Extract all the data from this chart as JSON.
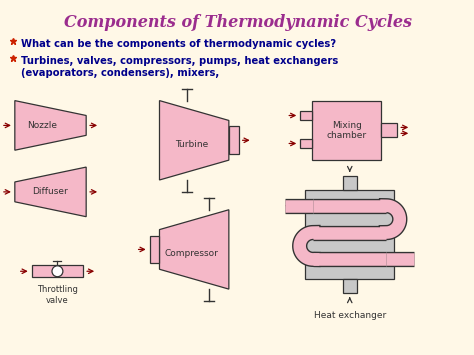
{
  "title": "Components of Thermodynamic Cycles",
  "title_color": "#9B2D8E",
  "bullet1": "What can be the components of thermodynamic cycles?",
  "bullet2": "Turbines, valves, compressors, pumps, heat exchangers\n(evaporators, condensers), mixers,",
  "bullet_color": "#00008B",
  "bullet_dot_color": "#CC2200",
  "bg_color": "#FFF8E7",
  "pink_fill": "#F5B8C8",
  "pink_stroke": "#333333",
  "gray_fill": "#C8C8C8",
  "arrow_color": "#880000",
  "label_color": "#333333"
}
